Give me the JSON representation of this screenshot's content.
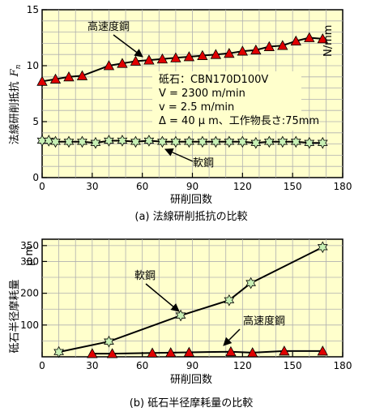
{
  "chart_data": [
    {
      "type": "line",
      "caption": "(a)  法線研削抵抗の比較",
      "xlabel": "研削回数",
      "ylabel": "法線研削抵抗",
      "ylabel_symbol": "F",
      "ylabel_sub": "n",
      "ylabel_unit": "N/mm",
      "xlim": [
        0,
        180
      ],
      "ylim": [
        0,
        15
      ],
      "xticks": [
        0,
        30,
        60,
        90,
        120,
        150,
        180
      ],
      "yticks": [
        0,
        5,
        10,
        15
      ],
      "grid": true,
      "background": "#ffffcc",
      "info_lines": [
        "砥石：CBN170D100V",
        "V = 2300 m/min",
        "v = 2.5  m/min",
        "Δ = 40  μ m、工作物長さ:75mm"
      ],
      "series": [
        {
          "name": "高速度鋼",
          "marker": "triangle",
          "color": "#e00000",
          "points": [
            [
              0,
              8.6
            ],
            [
              8,
              8.8
            ],
            [
              16,
              9.0
            ],
            [
              24,
              9.1
            ],
            [
              40,
              10.0
            ],
            [
              48,
              10.2
            ],
            [
              56,
              10.4
            ],
            [
              64,
              10.5
            ],
            [
              72,
              10.6
            ],
            [
              80,
              10.7
            ],
            [
              88,
              10.8
            ],
            [
              96,
              10.9
            ],
            [
              104,
              11.0
            ],
            [
              112,
              11.1
            ],
            [
              120,
              11.3
            ],
            [
              128,
              11.4
            ],
            [
              136,
              11.7
            ],
            [
              144,
              11.8
            ],
            [
              152,
              12.2
            ],
            [
              160,
              12.5
            ],
            [
              168,
              12.4
            ]
          ]
        },
        {
          "name": "軟鋼",
          "marker": "star",
          "color": "#c8f0b4",
          "points": [
            [
              0,
              3.3
            ],
            [
              4,
              3.3
            ],
            [
              8,
              3.2
            ],
            [
              16,
              3.2
            ],
            [
              24,
              3.2
            ],
            [
              32,
              3.1
            ],
            [
              40,
              3.3
            ],
            [
              48,
              3.3
            ],
            [
              56,
              3.2
            ],
            [
              64,
              3.3
            ],
            [
              72,
              3.2
            ],
            [
              80,
              3.2
            ],
            [
              88,
              3.2
            ],
            [
              96,
              3.2
            ],
            [
              104,
              3.2
            ],
            [
              112,
              3.2
            ],
            [
              120,
              3.2
            ],
            [
              128,
              3.1
            ],
            [
              136,
              3.2
            ],
            [
              144,
              3.2
            ],
            [
              152,
              3.2
            ],
            [
              160,
              3.1
            ],
            [
              168,
              3.1
            ]
          ]
        }
      ]
    },
    {
      "type": "line",
      "caption": "(b)  砥石半径摩耗量の比較",
      "xlabel": "研削回数",
      "ylabel": "砥石半径摩耗量",
      "ylabel_unit": "μ m",
      "xlim": [
        0,
        180
      ],
      "ylim": [
        0,
        370
      ],
      "xticks": [
        0,
        30,
        60,
        90,
        120,
        150,
        180
      ],
      "yticks": [
        100,
        200,
        300,
        350
      ],
      "grid": true,
      "background": "#ffffcc",
      "series": [
        {
          "name": "軟鋼",
          "marker": "star",
          "color": "#c8f0b4",
          "points": [
            [
              10,
              15
            ],
            [
              40,
              48
            ],
            [
              83,
              130
            ],
            [
              112,
              178
            ],
            [
              125,
              232
            ],
            [
              168,
              345
            ]
          ]
        },
        {
          "name": "高速度鋼",
          "marker": "triangle",
          "color": "#e00000",
          "points": [
            [
              30,
              10
            ],
            [
              42,
              10
            ],
            [
              66,
              12
            ],
            [
              77,
              13
            ],
            [
              88,
              14
            ],
            [
              113,
              16
            ],
            [
              126,
              13
            ],
            [
              145,
              18
            ],
            [
              168,
              18
            ]
          ]
        }
      ]
    }
  ]
}
